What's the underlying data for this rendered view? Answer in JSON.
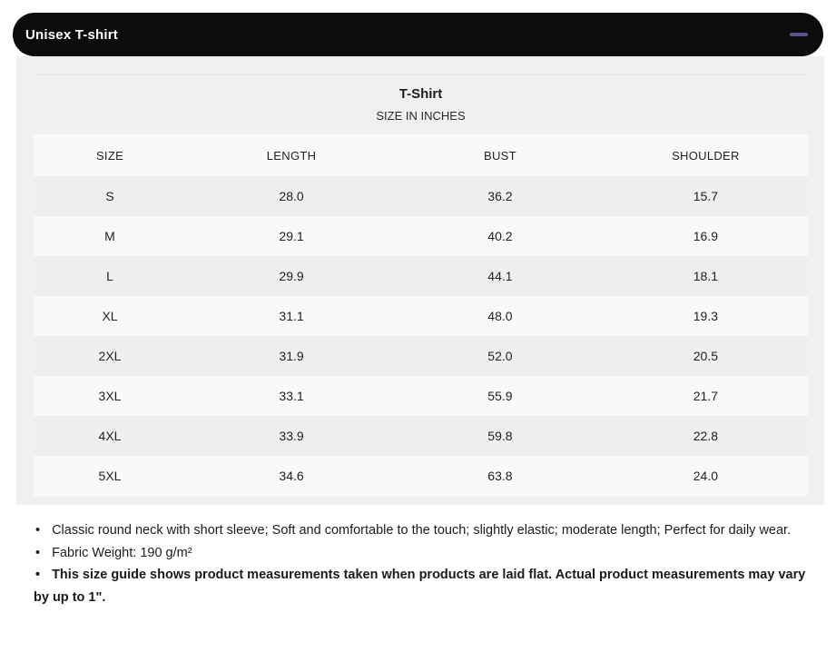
{
  "colors": {
    "header_bar": "#0c0c0c",
    "collapse_icon": "#54538a",
    "panel_background": "#f0f0f0",
    "row_light": "#f9f9f9",
    "row_shaded": "#efefef",
    "text": "#1f1f1f"
  },
  "accordion": {
    "title": "Unisex T-shirt"
  },
  "size_chart": {
    "title": "T-Shirt",
    "subtitle": "SIZE IN INCHES",
    "columns": [
      "SIZE",
      "LENGTH",
      "BUST",
      "SHOULDER"
    ],
    "rows": [
      [
        "S",
        "28.0",
        "36.2",
        "15.7"
      ],
      [
        "M",
        "29.1",
        "40.2",
        "16.9"
      ],
      [
        "L",
        "29.9",
        "44.1",
        "18.1"
      ],
      [
        "XL",
        "31.1",
        "48.0",
        "19.3"
      ],
      [
        "2XL",
        "31.9",
        "52.0",
        "20.5"
      ],
      [
        "3XL",
        "33.1",
        "55.9",
        "21.7"
      ],
      [
        "4XL",
        "33.9",
        "59.8",
        "22.8"
      ],
      [
        "5XL",
        "34.6",
        "63.8",
        "24.0"
      ]
    ]
  },
  "notes": {
    "bullet_char": "•",
    "items": [
      {
        "text": "Classic round neck with short sleeve; Soft and comfortable to the touch; slightly elastic; moderate length; Perfect for daily wear.",
        "bold": false
      },
      {
        "text": "Fabric Weight: 190 g/m²",
        "bold": false
      },
      {
        "text": "This size guide shows product measurements taken when products are laid flat. Actual product measurements may vary by up to 1\".",
        "bold": true
      }
    ]
  }
}
